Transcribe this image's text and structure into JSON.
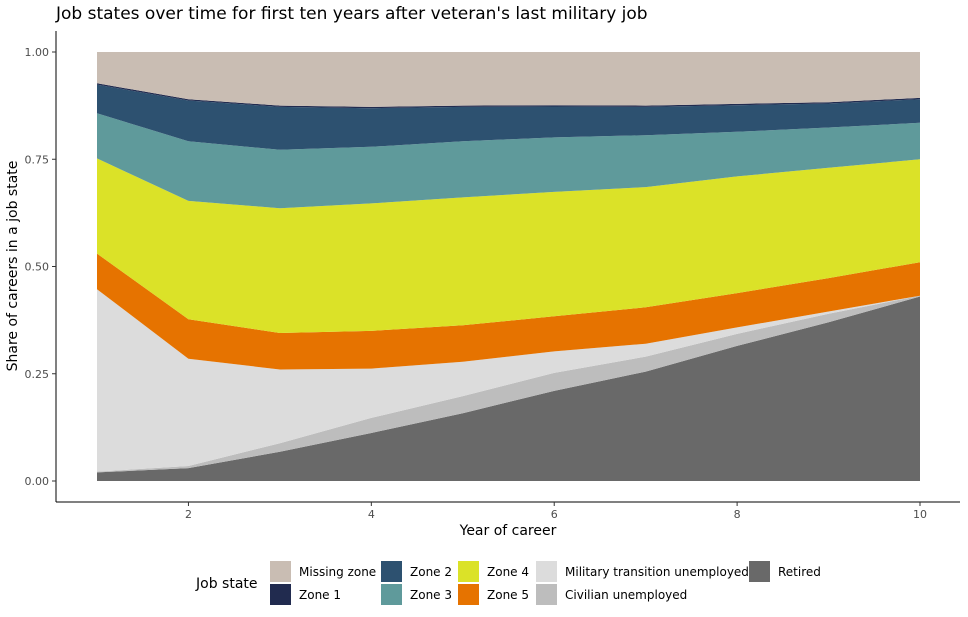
{
  "chart_data": {
    "type": "area",
    "title": "Job states over time for first ten years after veteran's last military job",
    "xlabel": "Year of career",
    "ylabel": "Share of careers in a job state",
    "xlim": [
      1,
      10
    ],
    "ylim": [
      0,
      1
    ],
    "x_ticks": [
      2,
      4,
      6,
      8,
      10
    ],
    "y_ticks": [
      "0.00",
      "0.25",
      "0.50",
      "0.75",
      "1.00"
    ],
    "grid": false,
    "legend": {
      "title": "Job state",
      "position": "bottom"
    },
    "x": [
      1,
      2,
      3,
      4,
      5,
      6,
      7,
      8,
      9,
      10
    ],
    "stack_order": "Retired at bottom, Missing zone at top",
    "series": [
      {
        "name": "Retired",
        "color": "#696969",
        "values": [
          0.02,
          0.03,
          0.068,
          0.112,
          0.158,
          0.21,
          0.255,
          0.315,
          0.37,
          0.43
        ]
      },
      {
        "name": "Civilian unemployed",
        "color": "#bdbdbd",
        "values": [
          0.002,
          0.005,
          0.02,
          0.035,
          0.04,
          0.042,
          0.035,
          0.028,
          0.02,
          0.002
        ]
      },
      {
        "name": "Military transition unemployed",
        "color": "#dcdcdc",
        "values": [
          0.425,
          0.25,
          0.172,
          0.115,
          0.08,
          0.05,
          0.03,
          0.015,
          0.005,
          0.0
        ]
      },
      {
        "name": "Zone 5",
        "color": "#e67300",
        "values": [
          0.083,
          0.092,
          0.085,
          0.088,
          0.085,
          0.082,
          0.085,
          0.08,
          0.078,
          0.078
        ]
      },
      {
        "name": "Zone 4",
        "color": "#dbe228",
        "values": [
          0.222,
          0.276,
          0.291,
          0.297,
          0.298,
          0.29,
          0.28,
          0.272,
          0.257,
          0.24
        ]
      },
      {
        "name": "Zone 3",
        "color": "#5f9a9b",
        "values": [
          0.105,
          0.139,
          0.136,
          0.132,
          0.131,
          0.127,
          0.121,
          0.104,
          0.094,
          0.085
        ]
      },
      {
        "name": "Zone 2",
        "color": "#2d5170",
        "values": [
          0.067,
          0.095,
          0.1,
          0.09,
          0.08,
          0.072,
          0.066,
          0.062,
          0.056,
          0.055
        ]
      },
      {
        "name": "Zone 1",
        "color": "#212b4f",
        "values": [
          0.003,
          0.003,
          0.003,
          0.003,
          0.003,
          0.003,
          0.003,
          0.003,
          0.003,
          0.003
        ]
      },
      {
        "name": "Missing zone",
        "color": "#c9bdb3",
        "values": [
          0.073,
          0.11,
          0.125,
          0.128,
          0.125,
          0.124,
          0.125,
          0.121,
          0.117,
          0.107
        ]
      }
    ],
    "legend_items": [
      {
        "label": "Missing zone",
        "color": "#c9bdb3"
      },
      {
        "label": "Zone 1",
        "color": "#212b4f"
      },
      {
        "label": "Zone 2",
        "color": "#2d5170"
      },
      {
        "label": "Zone 3",
        "color": "#5f9a9b"
      },
      {
        "label": "Zone 4",
        "color": "#dbe228"
      },
      {
        "label": "Zone 5",
        "color": "#e67300"
      },
      {
        "label": "Military transition unemployed",
        "color": "#dcdcdc"
      },
      {
        "label": "Civilian unemployed",
        "color": "#bdbdbd"
      },
      {
        "label": "Retired",
        "color": "#696969"
      }
    ]
  }
}
